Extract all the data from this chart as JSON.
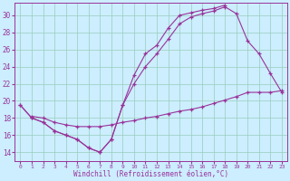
{
  "background_color": "#cceeff",
  "line_color": "#993399",
  "grid_color": "#99ccbb",
  "xlabel": "Windchill (Refroidissement éolien,°C)",
  "xlim": [
    -0.5,
    23.5
  ],
  "ylim": [
    13.0,
    31.5
  ],
  "xticks": [
    0,
    1,
    2,
    3,
    4,
    5,
    6,
    7,
    8,
    9,
    10,
    11,
    12,
    13,
    14,
    15,
    16,
    17,
    18,
    19,
    20,
    21,
    22,
    23
  ],
  "yticks": [
    14,
    16,
    18,
    20,
    22,
    24,
    26,
    28,
    30
  ],
  "curve1_x": [
    0,
    1,
    2,
    3,
    4,
    5,
    6,
    7,
    8,
    9,
    10,
    11,
    12,
    13,
    14,
    15,
    16,
    17,
    18
  ],
  "curve1_y": [
    19.5,
    18.0,
    17.5,
    16.5,
    16.0,
    15.5,
    14.5,
    14.0,
    15.5,
    19.5,
    23.0,
    25.5,
    26.5,
    28.5,
    30.0,
    30.3,
    30.6,
    30.8,
    31.2
  ],
  "curve2_x": [
    0,
    1,
    2,
    3,
    4,
    5,
    6,
    7,
    8,
    9,
    10,
    11,
    12,
    13,
    14,
    15,
    16,
    17,
    18,
    19,
    20,
    21,
    22,
    23
  ],
  "curve2_y": [
    19.5,
    18.0,
    17.5,
    16.5,
    16.0,
    15.5,
    14.5,
    14.0,
    15.5,
    19.5,
    22.0,
    24.0,
    25.5,
    27.2,
    29.0,
    29.8,
    30.2,
    30.5,
    31.0,
    30.2,
    27.0,
    25.5,
    23.2,
    21.0
  ],
  "curve3_x": [
    1,
    2,
    3,
    4,
    5,
    6,
    7,
    8,
    9,
    10,
    11,
    12,
    13,
    14,
    15,
    16,
    17,
    18,
    19,
    20,
    21,
    22,
    23
  ],
  "curve3_y": [
    18.2,
    18.0,
    17.5,
    17.2,
    17.0,
    17.0,
    17.0,
    17.2,
    17.5,
    17.7,
    18.0,
    18.2,
    18.5,
    18.8,
    19.0,
    19.3,
    19.7,
    20.1,
    20.5,
    21.0,
    21.0,
    21.0,
    21.2
  ]
}
